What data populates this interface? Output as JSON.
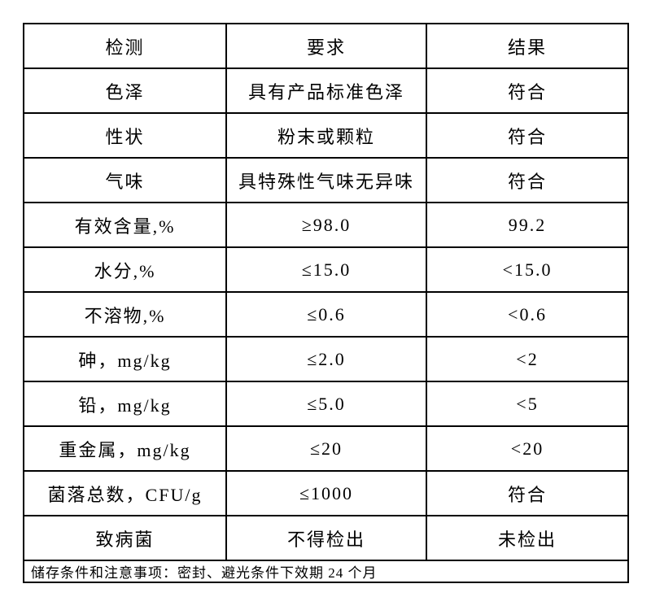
{
  "table": {
    "headers": [
      "检测",
      "要求",
      "结果"
    ],
    "rows": [
      {
        "test": "色泽",
        "requirement": "具有产品标准色泽",
        "result": "符合"
      },
      {
        "test": "性状",
        "requirement": "粉末或颗粒",
        "result": "符合"
      },
      {
        "test": "气味",
        "requirement": "具特殊性气味无异味",
        "result": "符合"
      },
      {
        "test": "有效含量,%",
        "requirement": "≥98.0",
        "result": "99.2"
      },
      {
        "test": "水分,%",
        "requirement": "≤15.0",
        "result": "<15.0"
      },
      {
        "test": "不溶物,%",
        "requirement": "≤0.6",
        "result": "<0.6"
      },
      {
        "test": "砷，mg/kg",
        "requirement": "≤2.0",
        "result": "<2"
      },
      {
        "test": "铅，mg/kg",
        "requirement": "≤5.0",
        "result": "<5"
      },
      {
        "test": "重金属，mg/kg",
        "requirement": "≤20",
        "result": "<20"
      },
      {
        "test": "菌落总数，CFU/g",
        "requirement": "≤1000",
        "result": "符合"
      },
      {
        "test": "致病菌",
        "requirement": "不得检出",
        "result": "未检出"
      }
    ],
    "footer_note": "储存条件和注意事项：密封、避光条件下效期 24 个月"
  }
}
